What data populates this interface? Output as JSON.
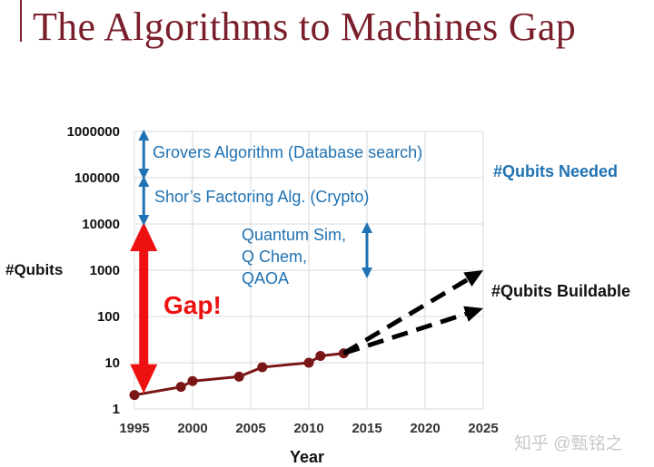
{
  "slide": {
    "title": "The Algorithms to Machines Gap",
    "watermark": "知乎 @甄铭之"
  },
  "colors": {
    "title": "#7a1f2b",
    "line": "#7a1616",
    "blue": "#1f72b3",
    "gap": "#ee1111",
    "grid": "#d9d9d9"
  },
  "chart_data": {
    "type": "line",
    "title": "",
    "xlabel": "Year",
    "ylabel": "#Qubits",
    "xlim": [
      1995,
      2025
    ],
    "ylim": [
      1,
      1000000
    ],
    "yscale": "log",
    "grid": true,
    "xticks": [
      "1995",
      "2000",
      "2005",
      "2010",
      "2015",
      "2020",
      "2025"
    ],
    "yticks": [
      "1",
      "10",
      "100",
      "1000",
      "10000",
      "100000",
      "1000000"
    ],
    "series": [
      {
        "name": "",
        "x": [
          1995,
          1999,
          2000,
          2004,
          2006,
          2010,
          2011,
          2013
        ],
        "y": [
          2,
          3,
          4,
          5,
          8,
          10,
          14,
          16
        ]
      }
    ],
    "projections": [
      {
        "from": [
          2013,
          16
        ],
        "to": [
          2025,
          1000
        ]
      },
      {
        "from": [
          2013,
          16
        ],
        "to": [
          2025,
          150
        ]
      }
    ],
    "annotations": {
      "grovers": {
        "text": "Grovers Algorithm (Database search)",
        "x": 1995.8,
        "y_range": [
          100000,
          1000000
        ]
      },
      "shor": {
        "text": "Shor’s Factoring Alg. (Crypto)",
        "x": 1995.8,
        "y_range": [
          10000,
          100000
        ]
      },
      "quantum_sim": {
        "lines": [
          "Quantum Sim,",
          "Q Chem,",
          "QAOA"
        ],
        "x": 2015,
        "y_range": [
          800,
          10000
        ]
      },
      "needed": {
        "text": "#Qubits Needed"
      },
      "buildable": {
        "text": "#Qubits Buildable"
      },
      "gap": {
        "text": "Gap!",
        "x": 1995.8,
        "y_range": [
          2,
          10000
        ]
      }
    }
  }
}
